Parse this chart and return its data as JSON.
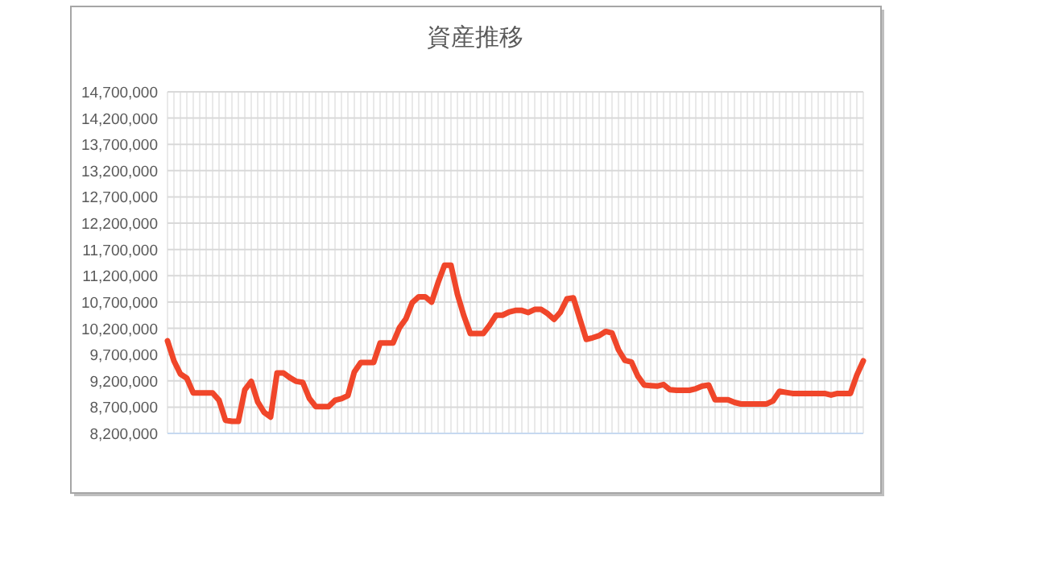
{
  "chart_data": {
    "type": "line",
    "title": "資産推移",
    "categories": [
      null,
      null,
      null,
      null,
      null,
      null,
      null,
      null,
      null,
      null,
      null,
      null,
      null,
      null,
      null,
      null,
      null,
      null,
      null,
      null,
      null,
      null,
      null,
      null,
      null,
      null,
      null,
      null,
      null,
      null,
      null,
      null,
      null,
      null,
      null,
      null,
      null,
      null,
      null,
      null,
      null,
      null,
      null,
      null,
      null,
      null,
      null,
      null,
      null,
      null,
      null,
      null,
      null,
      null,
      null,
      null,
      null,
      null,
      null,
      null,
      null,
      null,
      null,
      null,
      null,
      null,
      null,
      null,
      null,
      null,
      null,
      null,
      null,
      null,
      null,
      null,
      null,
      null,
      null,
      null,
      null,
      null,
      null,
      null,
      null,
      null,
      null,
      null,
      null,
      null,
      null,
      null,
      null,
      null,
      null,
      null,
      null,
      null,
      null,
      null,
      null,
      null,
      null,
      null,
      null,
      null,
      null,
      null,
      null
    ],
    "series": [
      {
        "color": "#f0462a",
        "values": [
          9960000,
          9580000,
          9330000,
          9250000,
          8970000,
          8970000,
          8970000,
          8970000,
          8830000,
          8450000,
          8430000,
          8430000,
          9030000,
          9190000,
          8800000,
          8600000,
          8510000,
          9350000,
          9350000,
          9260000,
          9190000,
          9170000,
          8870000,
          8710000,
          8710000,
          8710000,
          8830000,
          8860000,
          8920000,
          9370000,
          9550000,
          9550000,
          9550000,
          9920000,
          9920000,
          9920000,
          10210000,
          10380000,
          10690000,
          10800000,
          10800000,
          10700000,
          11070000,
          11400000,
          11400000,
          10850000,
          10440000,
          10100000,
          10100000,
          10100000,
          10260000,
          10450000,
          10450000,
          10510000,
          10540000,
          10540000,
          10500000,
          10560000,
          10560000,
          10480000,
          10370000,
          10510000,
          10760000,
          10780000,
          10380000,
          9990000,
          10020000,
          10060000,
          10140000,
          10110000,
          9790000,
          9590000,
          9560000,
          9290000,
          9120000,
          9110000,
          9100000,
          9130000,
          9030000,
          9020000,
          9020000,
          9020000,
          9050000,
          9100000,
          9120000,
          8840000,
          8840000,
          8840000,
          8790000,
          8760000,
          8760000,
          8760000,
          8760000,
          8760000,
          8820000,
          9000000,
          8980000,
          8960000,
          8960000,
          8960000,
          8960000,
          8960000,
          8960000,
          8930000,
          8960000,
          8960000,
          8960000,
          9310000,
          9580000
        ]
      }
    ],
    "ylim": [
      8200000,
      14700000
    ],
    "yticks": [
      {
        "value": 8200000,
        "label": "8,200,000"
      },
      {
        "value": 8700000,
        "label": "8,700,000"
      },
      {
        "value": 9200000,
        "label": "9,200,000"
      },
      {
        "value": 9700000,
        "label": "9,700,000"
      },
      {
        "value": 10200000,
        "label": "10,200,000"
      },
      {
        "value": 10700000,
        "label": "10,700,000"
      },
      {
        "value": 11200000,
        "label": "11,200,000"
      },
      {
        "value": 11700000,
        "label": "11,700,000"
      },
      {
        "value": 12200000,
        "label": "12,200,000"
      },
      {
        "value": 12700000,
        "label": "12,700,000"
      },
      {
        "value": 13200000,
        "label": "13,200,000"
      },
      {
        "value": 13700000,
        "label": "13,700,000"
      },
      {
        "value": 14200000,
        "label": "14,200,000"
      },
      {
        "value": 14700000,
        "label": "14,700,000"
      }
    ],
    "grid": true,
    "tick_labels": "y",
    "line_style": "solid"
  }
}
